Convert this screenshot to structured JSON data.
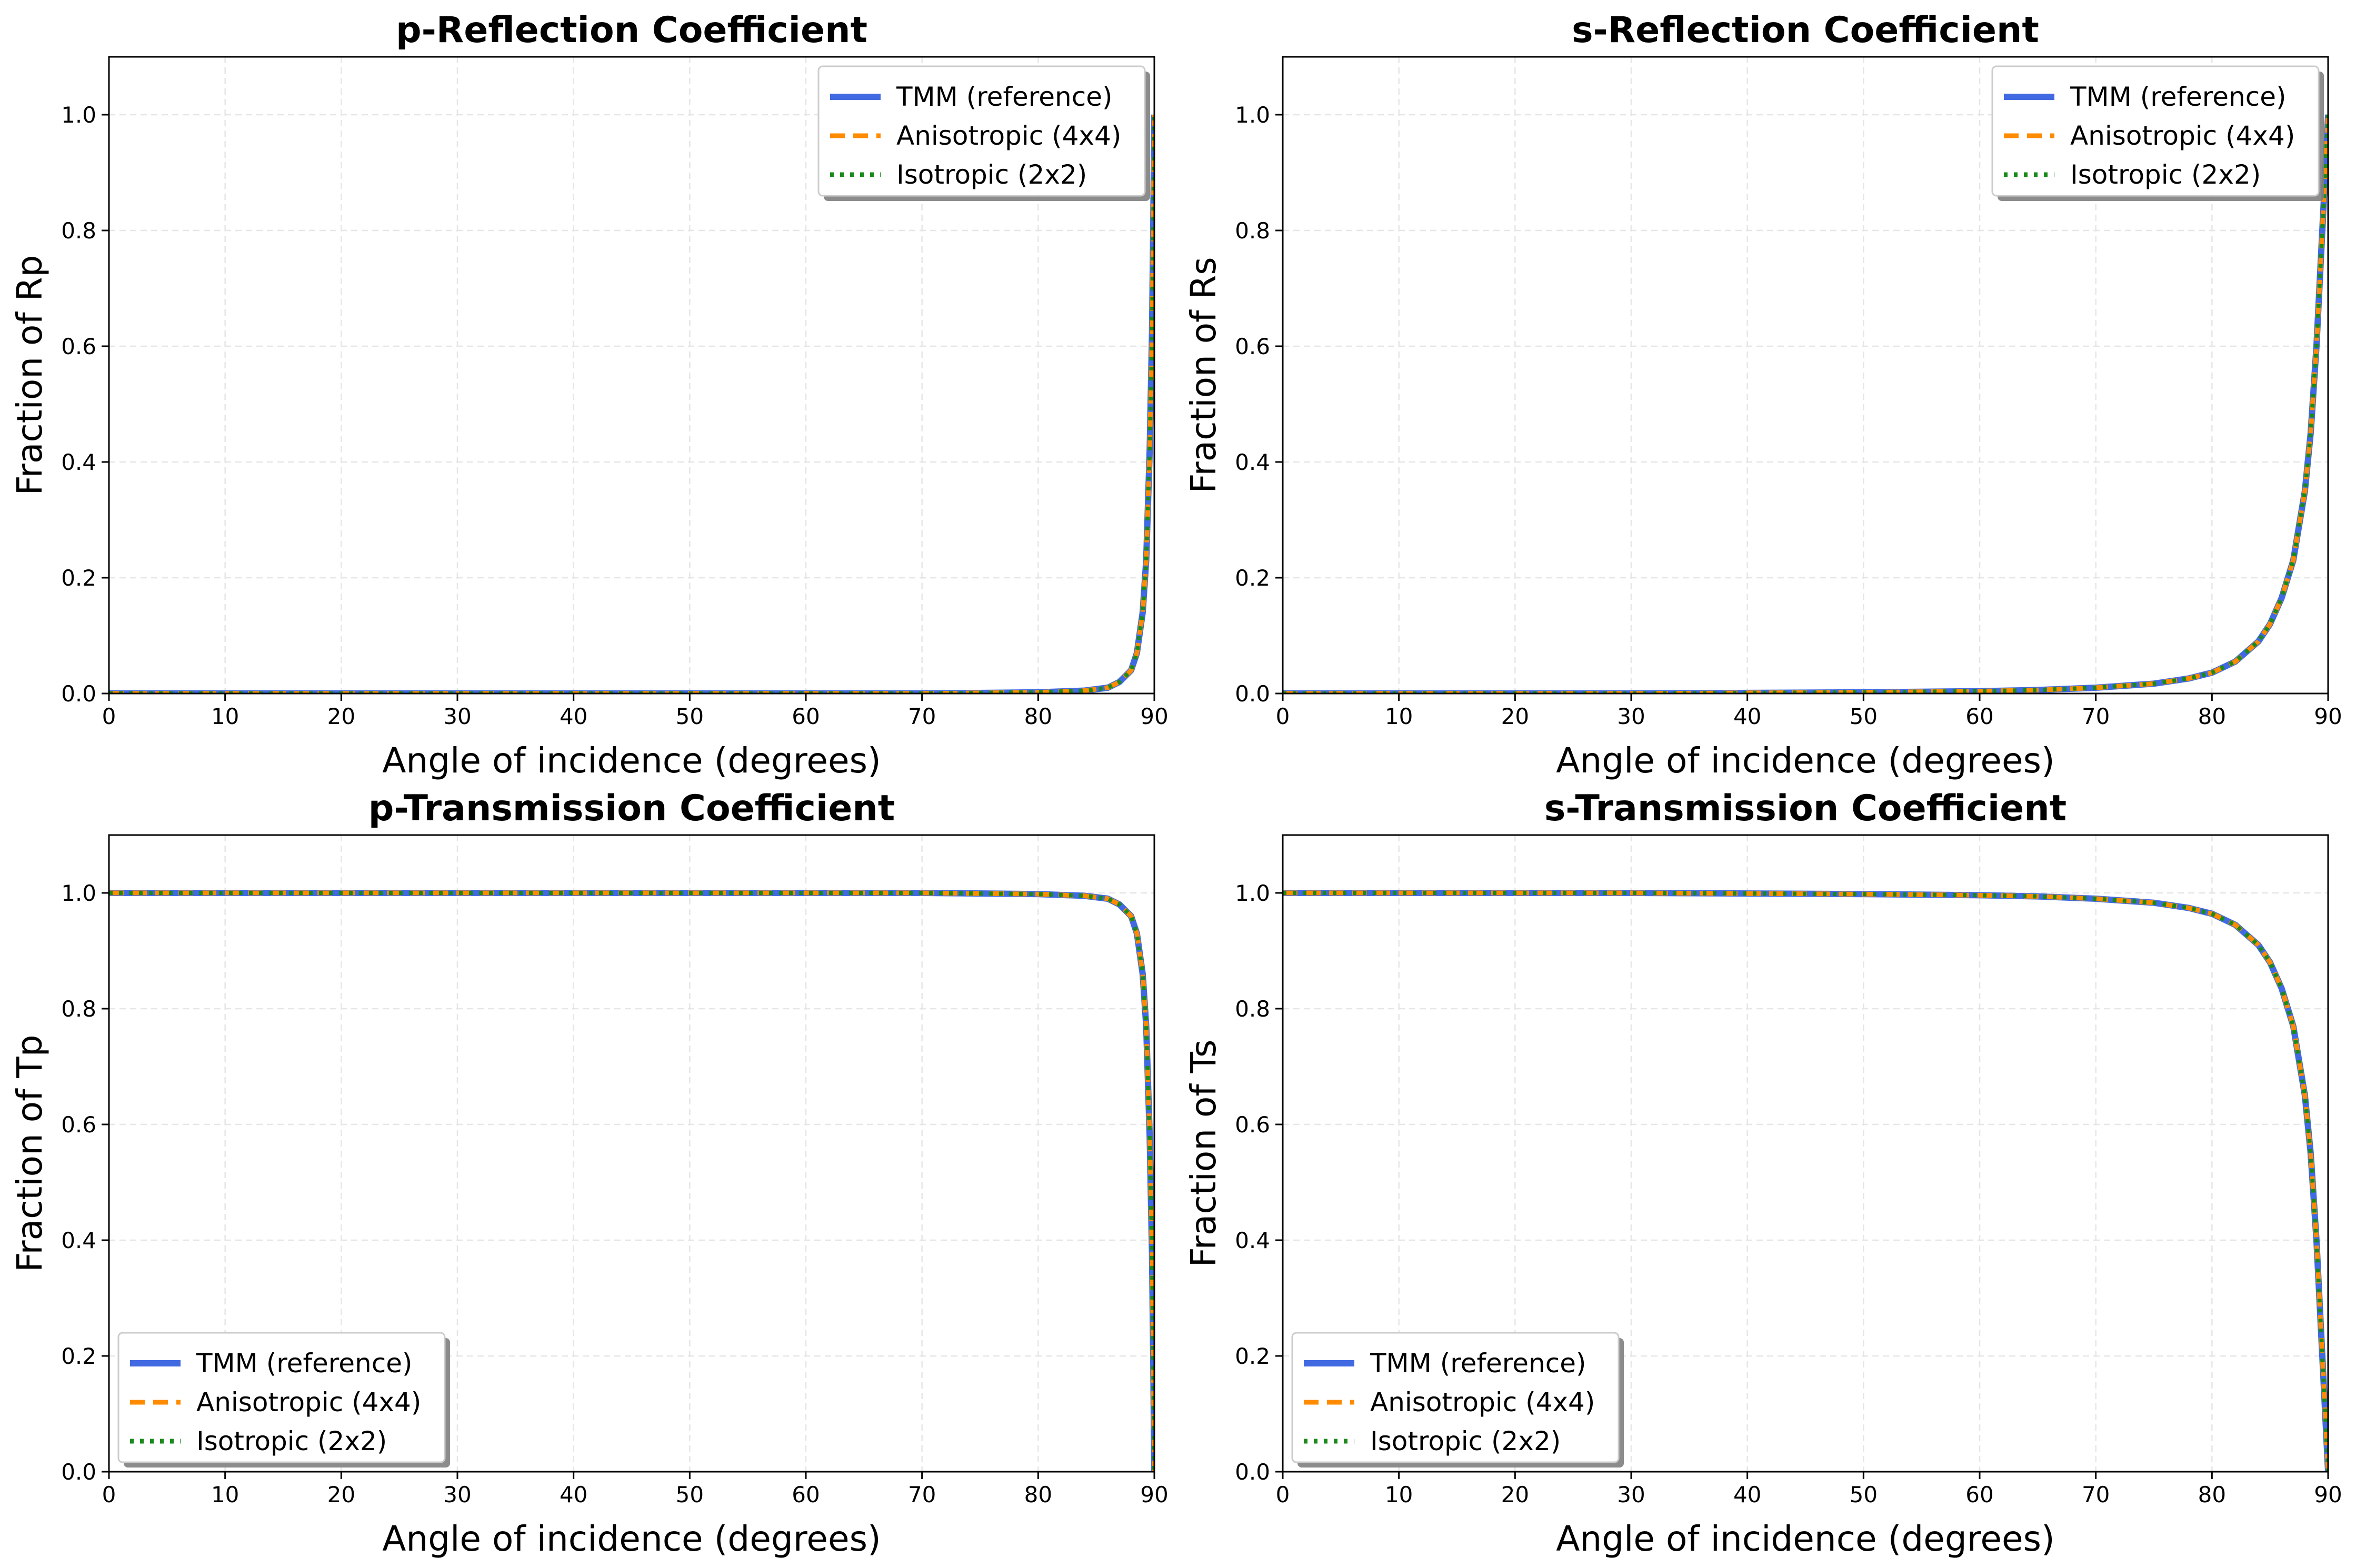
{
  "chart_data": [
    {
      "type": "line",
      "title": "p-Reflection Coefficient",
      "xlabel": "Angle of incidence (degrees)",
      "ylabel": "Fraction of Rp",
      "xlim": [
        0,
        90
      ],
      "ylim": [
        0,
        1.1
      ],
      "xticks": [
        "0",
        "10",
        "20",
        "30",
        "40",
        "50",
        "60",
        "70",
        "80",
        "90"
      ],
      "yticks": [
        "0.0",
        "0.2",
        "0.4",
        "0.6",
        "0.8",
        "1.0"
      ],
      "grid": true,
      "legend_position": "upper right",
      "x": [
        0,
        10,
        20,
        30,
        40,
        50,
        60,
        70,
        80,
        84,
        86,
        87,
        88,
        88.5,
        89,
        89.3,
        89.6,
        89.8,
        89.9,
        90
      ],
      "series": [
        {
          "name": "TMM (reference)",
          "color": "#4169E1",
          "style": "solid",
          "values": [
            0.0,
            0.0,
            0.0,
            0.0,
            0.0,
            0.0,
            0.0,
            0.0,
            0.002,
            0.005,
            0.01,
            0.02,
            0.04,
            0.07,
            0.14,
            0.23,
            0.42,
            0.62,
            0.79,
            1.0
          ]
        },
        {
          "name": "Anisotropic (4x4)",
          "color": "#FF8C00",
          "style": "dashed",
          "values": [
            0.0,
            0.0,
            0.0,
            0.0,
            0.0,
            0.0,
            0.0,
            0.0,
            0.002,
            0.005,
            0.01,
            0.02,
            0.04,
            0.07,
            0.14,
            0.23,
            0.42,
            0.62,
            0.79,
            1.0
          ]
        },
        {
          "name": "Isotropic (2x2)",
          "color": "#1B8A1B",
          "style": "dotted",
          "values": [
            0.0,
            0.0,
            0.0,
            0.0,
            0.0,
            0.0,
            0.0,
            0.0,
            0.002,
            0.005,
            0.01,
            0.02,
            0.04,
            0.07,
            0.14,
            0.23,
            0.42,
            0.62,
            0.79,
            1.0
          ]
        }
      ]
    },
    {
      "type": "line",
      "title": "s-Reflection Coefficient",
      "xlabel": "Angle of incidence (degrees)",
      "ylabel": "Fraction of Rs",
      "xlim": [
        0,
        90
      ],
      "ylim": [
        0,
        1.1
      ],
      "xticks": [
        "0",
        "10",
        "20",
        "30",
        "40",
        "50",
        "60",
        "70",
        "80",
        "90"
      ],
      "yticks": [
        "0.0",
        "0.2",
        "0.4",
        "0.6",
        "0.8",
        "1.0"
      ],
      "grid": true,
      "legend_position": "upper right",
      "x": [
        0,
        10,
        20,
        30,
        40,
        50,
        60,
        65,
        70,
        75,
        78,
        80,
        82,
        84,
        85,
        86,
        87,
        88,
        88.5,
        89,
        89.5,
        90
      ],
      "series": [
        {
          "name": "TMM (reference)",
          "color": "#4169E1",
          "style": "solid",
          "values": [
            0.0,
            0.0,
            0.0,
            0.0,
            0.001,
            0.002,
            0.004,
            0.006,
            0.01,
            0.017,
            0.026,
            0.036,
            0.055,
            0.09,
            0.12,
            0.165,
            0.23,
            0.35,
            0.45,
            0.6,
            0.8,
            1.0
          ]
        },
        {
          "name": "Anisotropic (4x4)",
          "color": "#FF8C00",
          "style": "dashed",
          "values": [
            0.0,
            0.0,
            0.0,
            0.0,
            0.001,
            0.002,
            0.004,
            0.006,
            0.01,
            0.017,
            0.026,
            0.036,
            0.055,
            0.09,
            0.12,
            0.165,
            0.23,
            0.35,
            0.45,
            0.6,
            0.8,
            1.0
          ]
        },
        {
          "name": "Isotropic (2x2)",
          "color": "#1B8A1B",
          "style": "dotted",
          "values": [
            0.0,
            0.0,
            0.0,
            0.0,
            0.001,
            0.002,
            0.004,
            0.006,
            0.01,
            0.017,
            0.026,
            0.036,
            0.055,
            0.09,
            0.12,
            0.165,
            0.23,
            0.35,
            0.45,
            0.6,
            0.8,
            1.0
          ]
        }
      ]
    },
    {
      "type": "line",
      "title": "p-Transmission Coefficient",
      "xlabel": "Angle of incidence (degrees)",
      "ylabel": "Fraction of Tp",
      "xlim": [
        0,
        90
      ],
      "ylim": [
        0,
        1.1
      ],
      "xticks": [
        "0",
        "10",
        "20",
        "30",
        "40",
        "50",
        "60",
        "70",
        "80",
        "90"
      ],
      "yticks": [
        "0.0",
        "0.2",
        "0.4",
        "0.6",
        "0.8",
        "1.0"
      ],
      "grid": true,
      "legend_position": "lower left",
      "x": [
        0,
        10,
        20,
        30,
        40,
        50,
        60,
        70,
        80,
        84,
        86,
        87,
        88,
        88.5,
        89,
        89.3,
        89.6,
        89.8,
        89.9,
        90
      ],
      "series": [
        {
          "name": "TMM (reference)",
          "color": "#4169E1",
          "style": "solid",
          "values": [
            1.0,
            1.0,
            1.0,
            1.0,
            1.0,
            1.0,
            1.0,
            1.0,
            0.998,
            0.995,
            0.99,
            0.98,
            0.96,
            0.93,
            0.86,
            0.77,
            0.58,
            0.38,
            0.21,
            0.0
          ]
        },
        {
          "name": "Anisotropic (4x4)",
          "color": "#FF8C00",
          "style": "dashed",
          "values": [
            1.0,
            1.0,
            1.0,
            1.0,
            1.0,
            1.0,
            1.0,
            1.0,
            0.998,
            0.995,
            0.99,
            0.98,
            0.96,
            0.93,
            0.86,
            0.77,
            0.58,
            0.38,
            0.21,
            0.0
          ]
        },
        {
          "name": "Isotropic (2x2)",
          "color": "#1B8A1B",
          "style": "dotted",
          "values": [
            1.0,
            1.0,
            1.0,
            1.0,
            1.0,
            1.0,
            1.0,
            1.0,
            0.998,
            0.995,
            0.99,
            0.98,
            0.96,
            0.93,
            0.86,
            0.77,
            0.58,
            0.38,
            0.21,
            0.0
          ]
        }
      ]
    },
    {
      "type": "line",
      "title": "s-Transmission Coefficient",
      "xlabel": "Angle of incidence (degrees)",
      "ylabel": "Fraction of Ts",
      "xlim": [
        0,
        90
      ],
      "ylim": [
        0,
        1.1
      ],
      "xticks": [
        "0",
        "10",
        "20",
        "30",
        "40",
        "50",
        "60",
        "70",
        "80",
        "90"
      ],
      "yticks": [
        "0.0",
        "0.2",
        "0.4",
        "0.6",
        "0.8",
        "1.0"
      ],
      "grid": true,
      "legend_position": "lower left",
      "x": [
        0,
        10,
        20,
        30,
        40,
        50,
        60,
        65,
        70,
        75,
        78,
        80,
        82,
        84,
        85,
        86,
        87,
        88,
        88.5,
        89,
        89.5,
        90
      ],
      "series": [
        {
          "name": "TMM (reference)",
          "color": "#4169E1",
          "style": "solid",
          "values": [
            1.0,
            1.0,
            1.0,
            1.0,
            0.999,
            0.998,
            0.996,
            0.994,
            0.99,
            0.983,
            0.974,
            0.964,
            0.945,
            0.91,
            0.88,
            0.835,
            0.77,
            0.65,
            0.55,
            0.4,
            0.2,
            0.0
          ]
        },
        {
          "name": "Anisotropic (4x4)",
          "color": "#FF8C00",
          "style": "dashed",
          "values": [
            1.0,
            1.0,
            1.0,
            1.0,
            0.999,
            0.998,
            0.996,
            0.994,
            0.99,
            0.983,
            0.974,
            0.964,
            0.945,
            0.91,
            0.88,
            0.835,
            0.77,
            0.65,
            0.55,
            0.4,
            0.2,
            0.0
          ]
        },
        {
          "name": "Isotropic (2x2)",
          "color": "#1B8A1B",
          "style": "dotted",
          "values": [
            1.0,
            1.0,
            1.0,
            1.0,
            0.999,
            0.998,
            0.996,
            0.994,
            0.99,
            0.983,
            0.974,
            0.964,
            0.945,
            0.91,
            0.88,
            0.835,
            0.77,
            0.65,
            0.55,
            0.4,
            0.2,
            0.0
          ]
        }
      ]
    }
  ]
}
